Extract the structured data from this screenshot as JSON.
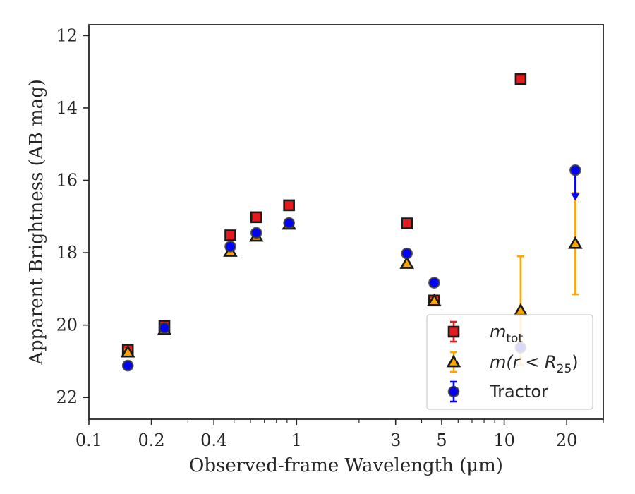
{
  "chart_data": {
    "type": "scatter",
    "title": "",
    "xlabel": "Observed-frame Wavelength (μm)",
    "ylabel": "Apparent Brightness (AB mag)",
    "x_scale": "log",
    "xlim": [
      0.1,
      30
    ],
    "ylim": [
      22.6,
      11.7
    ],
    "y_inverted": true,
    "grid": false,
    "legend_position": "lower right",
    "x_ticks": [
      {
        "value": 0.1,
        "label": "0.1"
      },
      {
        "value": 0.2,
        "label": "0.2"
      },
      {
        "value": 0.4,
        "label": "0.4"
      },
      {
        "value": 1,
        "label": "1"
      },
      {
        "value": 3,
        "label": "3"
      },
      {
        "value": 5,
        "label": "5"
      },
      {
        "value": 10,
        "label": "10"
      },
      {
        "value": 20,
        "label": "20"
      }
    ],
    "x_minor_ticks": [
      0.3,
      0.5,
      0.6,
      0.7,
      0.8,
      0.9,
      2,
      4,
      6,
      7,
      8,
      9,
      30
    ],
    "y_ticks": [
      {
        "value": 12,
        "label": "12"
      },
      {
        "value": 14,
        "label": "14"
      },
      {
        "value": 16,
        "label": "16"
      },
      {
        "value": 18,
        "label": "18"
      },
      {
        "value": 20,
        "label": "20"
      },
      {
        "value": 22,
        "label": "22"
      }
    ],
    "series": [
      {
        "name": "m_tot",
        "legend_label_main": "m",
        "legend_label_sub": "tot",
        "marker": "square",
        "color": "#e41a1c",
        "points": [
          {
            "x": 0.154,
            "y": 20.68,
            "err": 0.08
          },
          {
            "x": 0.231,
            "y": 20.02,
            "err": 0.06
          },
          {
            "x": 0.48,
            "y": 17.52,
            "err": 0.03
          },
          {
            "x": 0.64,
            "y": 17.02,
            "err": 0.03
          },
          {
            "x": 0.92,
            "y": 16.69,
            "err": 0.03
          },
          {
            "x": 3.4,
            "y": 17.19,
            "err": 0.03
          },
          {
            "x": 4.6,
            "y": 19.32,
            "err": 0.05
          },
          {
            "x": 12.0,
            "y": 13.2,
            "err": 0.03
          }
        ]
      },
      {
        "name": "m(r < R25)",
        "legend_label_main": "m(r < R",
        "legend_label_sub": "25",
        "legend_label_tail": ")",
        "marker": "triangle",
        "color": "#ffa500",
        "points": [
          {
            "x": 0.154,
            "y": 20.75,
            "err": 0.08
          },
          {
            "x": 0.231,
            "y": 20.13,
            "err": 0.06
          },
          {
            "x": 0.48,
            "y": 17.97,
            "err": 0.03
          },
          {
            "x": 0.64,
            "y": 17.55,
            "err": 0.03
          },
          {
            "x": 0.92,
            "y": 17.22,
            "err": 0.03
          },
          {
            "x": 3.4,
            "y": 18.3,
            "err": 0.04
          },
          {
            "x": 4.6,
            "y": 19.33,
            "err": 0.06
          },
          {
            "x": 12.0,
            "y": 19.6,
            "err": 1.5
          },
          {
            "x": 22.0,
            "y": 17.75,
            "err": 1.4
          }
        ]
      },
      {
        "name": "Tractor",
        "legend_label_main": "Tractor",
        "marker": "circle",
        "color": "#0000ff",
        "points": [
          {
            "x": 0.154,
            "y": 21.12,
            "err": 0.08
          },
          {
            "x": 0.231,
            "y": 20.08,
            "err": 0.06
          },
          {
            "x": 0.48,
            "y": 17.83,
            "err": 0.03
          },
          {
            "x": 0.64,
            "y": 17.45,
            "err": 0.03
          },
          {
            "x": 0.92,
            "y": 17.18,
            "err": 0.03
          },
          {
            "x": 3.4,
            "y": 18.02,
            "err": 0.04
          },
          {
            "x": 4.6,
            "y": 18.83,
            "err": 0.05
          },
          {
            "x": 12.0,
            "y": 20.62,
            "err": 0.05
          },
          {
            "x": 22.0,
            "y": 15.72,
            "err": 0.8,
            "upper_limit": true
          }
        ]
      }
    ]
  }
}
